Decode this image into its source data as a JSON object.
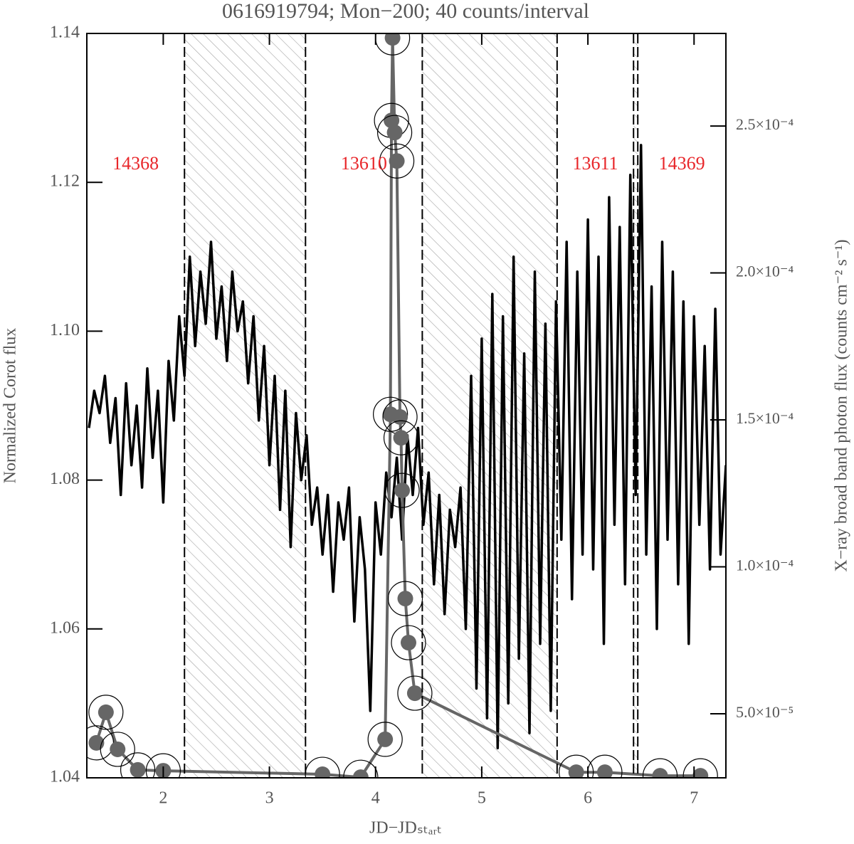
{
  "chart_data": {
    "type": "line",
    "title": "0616919794; Mon−200; 40 counts/interval",
    "xlabel": "JD−JDₛₜₐᵣₜ",
    "ylabel": "Normalized Corot flux",
    "y2label": "X−ray broad band photon flux (counts cm⁻² s⁻¹)",
    "xlim": [
      1.28,
      7.3
    ],
    "xticks": [
      2,
      3,
      4,
      5,
      6,
      7
    ],
    "ylim": [
      1.04,
      1.14
    ],
    "yticks": [
      1.04,
      1.06,
      1.08,
      {
        "value": 1.1,
        "label": "1.10"
      },
      1.12,
      1.14
    ],
    "y2lim": [
      2.82e-05,
      0.0002815
    ],
    "y2ticks": [
      {
        "value": 5e-05,
        "label": "5.0×10⁻⁵"
      },
      {
        "value": 0.0001,
        "label": "1.0×10⁻⁴"
      },
      {
        "value": 0.00015,
        "label": "1.5×10⁻⁴"
      },
      {
        "value": 0.0002,
        "label": "2.0×10⁻⁴"
      },
      {
        "value": 0.00025,
        "label": "2.5×10⁻⁴"
      }
    ],
    "observations": [
      {
        "label": "14368",
        "start": 1.28,
        "end": 2.2
      },
      {
        "label": "13610",
        "start": 3.34,
        "end": 4.44
      },
      {
        "label": "13611",
        "start": 5.71,
        "end": 6.43
      },
      {
        "label": "14369",
        "start": 6.47,
        "end": 7.3
      }
    ],
    "series": [
      {
        "color": "#000000",
        "x": [
          1.3,
          1.35,
          1.4,
          1.45,
          1.5,
          1.55,
          1.6,
          1.65,
          1.7,
          1.75,
          1.8,
          1.85,
          1.9,
          1.95,
          2.0,
          2.05,
          2.1,
          2.15,
          2.2,
          2.25,
          2.3,
          2.35,
          2.4,
          2.45,
          2.5,
          2.55,
          2.6,
          2.65,
          2.7,
          2.75,
          2.8,
          2.85,
          2.9,
          2.95,
          3.0,
          3.05,
          3.1,
          3.15,
          3.2,
          3.25,
          3.3,
          3.35,
          3.4,
          3.45,
          3.5,
          3.55,
          3.6,
          3.65,
          3.7,
          3.75,
          3.8,
          3.85,
          3.9,
          3.95,
          4.0,
          4.05,
          4.1,
          4.15,
          4.2,
          4.25,
          4.3,
          4.35,
          4.4,
          4.45,
          4.5,
          4.55,
          4.6,
          4.65,
          4.7,
          4.75,
          4.8,
          4.85,
          4.9,
          4.95,
          5.0,
          5.05,
          5.1,
          5.15,
          5.2,
          5.25,
          5.3,
          5.35,
          5.4,
          5.45,
          5.5,
          5.55,
          5.6,
          5.65,
          5.7,
          5.75,
          5.8,
          5.85,
          5.9,
          5.95,
          6.0,
          6.05,
          6.1,
          6.15,
          6.2,
          6.25,
          6.3,
          6.35,
          6.4,
          6.45,
          6.5,
          6.55,
          6.6,
          6.65,
          6.7,
          6.75,
          6.8,
          6.85,
          6.9,
          6.95,
          7.0,
          7.05,
          7.1,
          7.15,
          7.2,
          7.25,
          7.3
        ],
        "values": [
          1.087,
          1.092,
          1.089,
          1.094,
          1.085,
          1.091,
          1.078,
          1.093,
          1.082,
          1.09,
          1.079,
          1.095,
          1.083,
          1.092,
          1.077,
          1.096,
          1.088,
          1.102,
          1.094,
          1.11,
          1.098,
          1.108,
          1.101,
          1.112,
          1.099,
          1.106,
          1.096,
          1.108,
          1.1,
          1.104,
          1.093,
          1.102,
          1.088,
          1.098,
          1.082,
          1.094,
          1.076,
          1.092,
          1.071,
          1.089,
          1.08,
          1.086,
          1.074,
          1.079,
          1.07,
          1.078,
          1.065,
          1.077,
          1.072,
          1.079,
          1.061,
          1.075,
          1.068,
          1.049,
          1.077,
          1.07,
          1.081,
          1.075,
          1.083,
          1.072,
          1.086,
          1.078,
          1.087,
          1.074,
          1.081,
          1.066,
          1.078,
          1.062,
          1.076,
          1.071,
          1.079,
          1.06,
          1.094,
          1.052,
          1.099,
          1.048,
          1.105,
          1.044,
          1.102,
          1.05,
          1.11,
          1.056,
          1.097,
          1.046,
          1.108,
          1.058,
          1.101,
          1.049,
          1.104,
          1.072,
          1.112,
          1.064,
          1.108,
          1.07,
          1.115,
          1.068,
          1.11,
          1.058,
          1.118,
          1.074,
          1.114,
          1.066,
          1.121,
          1.078,
          1.125,
          1.07,
          1.106,
          1.06,
          1.112,
          1.072,
          1.108,
          1.066,
          1.104,
          1.058,
          1.102,
          1.074,
          1.098,
          1.068,
          1.103,
          1.07,
          1.082
        ]
      },
      {
        "color": "#666666",
        "axis": "y2",
        "x": [
          1.37,
          1.46,
          1.57,
          1.76,
          2.0,
          3.5,
          3.86,
          4.09,
          4.14,
          4.15,
          4.16,
          4.18,
          4.2,
          4.23,
          4.24,
          4.25,
          4.28,
          4.31,
          4.37,
          5.89,
          6.16,
          6.68,
          7.06
        ],
        "values": [
          4.01e-05,
          5.05e-05,
          3.79e-05,
          3.09e-05,
          3.06e-05,
          2.94e-05,
          2.84e-05,
          4.13e-05,
          0.0001519,
          0.0002519,
          0.00028,
          0.0002478,
          0.0002381,
          0.000151,
          0.0001439,
          0.000126,
          8.92e-05,
          7.42e-05,
          5.7e-05,
          3.01e-05,
          3.01e-05,
          2.89e-05,
          2.89e-05
        ]
      }
    ]
  }
}
